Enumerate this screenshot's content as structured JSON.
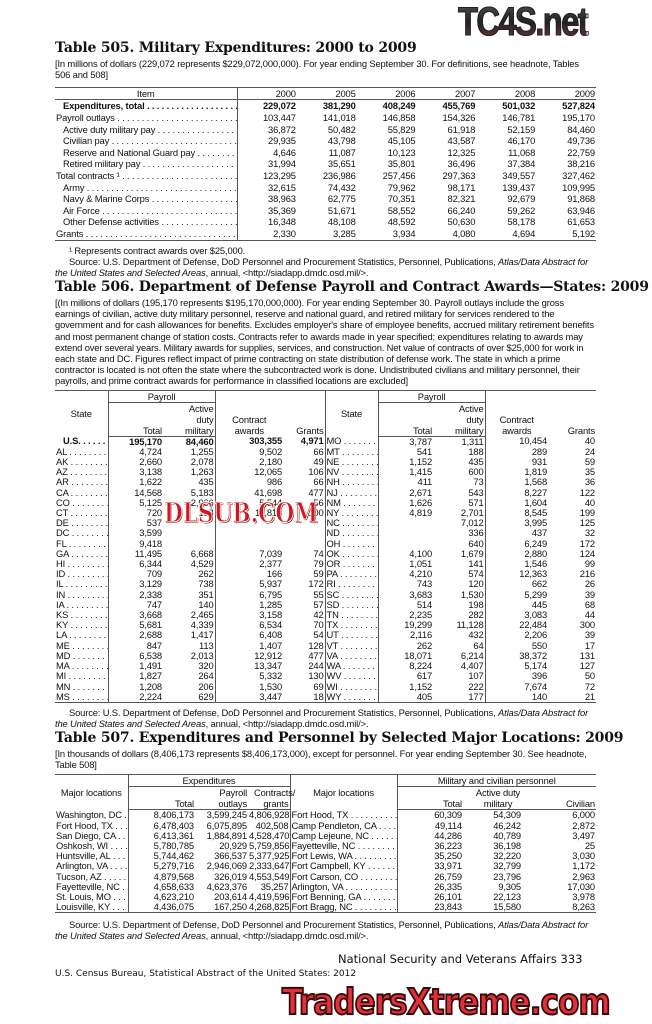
{
  "watermarks": {
    "top": "TC4S.net",
    "middle": "DLSUB.COM",
    "bottom": "TradersXtreme.com"
  },
  "t505": {
    "title": "Table 505. Military Expenditures: 2000 to 2009",
    "headnote": "[In millions of dollars (229,072 represents $229,072,000,000). For year ending September 30. For definitions, see headnote, Tables 506 and 508]",
    "columns": [
      "Item",
      "2000",
      "2005",
      "2006",
      "2007",
      "2008",
      "2009"
    ],
    "rows": [
      {
        "label": "Expenditures, total",
        "bold": true,
        "indent": true,
        "values": [
          "229,072",
          "381,290",
          "408,249",
          "455,769",
          "501,032",
          "527,824"
        ]
      },
      {
        "label": "Payroll outlays",
        "values": [
          "103,447",
          "141,018",
          "146,858",
          "154,326",
          "146,781",
          "195,170"
        ]
      },
      {
        "label": "Active duty military pay",
        "indent": true,
        "values": [
          "36,872",
          "50,482",
          "55,829",
          "61,918",
          "52,159",
          "84,460"
        ]
      },
      {
        "label": "Civilian pay",
        "indent": true,
        "values": [
          "29,935",
          "43,798",
          "45,105",
          "43,587",
          "46,170",
          "49,736"
        ]
      },
      {
        "label": "Reserve and National Guard pay",
        "indent": true,
        "values": [
          "4,646",
          "11,087",
          "10,123",
          "12,325",
          "11,068",
          "22,759"
        ]
      },
      {
        "label": "Retired military pay",
        "indent": true,
        "values": [
          "31,994",
          "35,651",
          "35,801",
          "36,496",
          "37,384",
          "38,216"
        ]
      },
      {
        "label": "Total contracts ¹",
        "values": [
          "123,295",
          "236,986",
          "257,456",
          "297,363",
          "349,557",
          "327,462"
        ]
      },
      {
        "label": "Army",
        "indent": true,
        "values": [
          "32,615",
          "74,432",
          "79,962",
          "98,171",
          "139,437",
          "109,995"
        ]
      },
      {
        "label": "Navy & Marine Corps",
        "indent": true,
        "values": [
          "38,963",
          "62,775",
          "70,351",
          "82,321",
          "92,679",
          "91,868"
        ]
      },
      {
        "label": "Air Force",
        "indent": true,
        "values": [
          "35,369",
          "51,671",
          "58,552",
          "66,240",
          "59,262",
          "63,946"
        ]
      },
      {
        "label": "Other Defense activities",
        "indent": true,
        "values": [
          "16,348",
          "48,108",
          "48,592",
          "50,630",
          "58,178",
          "61,653"
        ]
      },
      {
        "label": "Grants",
        "values": [
          "2,330",
          "3,285",
          "3,934",
          "4,080",
          "4,694",
          "5,192"
        ]
      }
    ],
    "footnote": "¹ Represents contract awards over $25,000.",
    "source": "Source: U.S. Department of Defense, DoD Personnel and Procurement Statistics, Personnel, Publications, ",
    "source_italic": "Atlas/Data Abstract for the United States and Selected Areas",
    "source_end": ", annual, <http://siadapp.dmdc.osd.mil/>."
  },
  "t506": {
    "title": "Table 506. Department of Defense Payroll and Contract Awards—States: 2009",
    "headnote": "[(In millions of dollars (195,170 represents $195,170,000,000). For year ending September 30. Payroll outlays include the gross earnings of civilian, active duty military personnel, reserve and national guard, and retired military for services rendered to the government and for cash allowances for benefits. Excludes employer's share of employee benefits, accrued military retirement benefits and most permanent change of station costs. Contracts refer to awards made in year specified; expenditures relating to awards may extend over several years. Military awards for supplies, services, and construction. Net value of contracts of over $25,000 for work in each state and DC. Figures reflect impact of prime contracting on state distribution of defense work. The state in which a prime contractor is located is not often the state where the subcontracted work is done. Undistributed civilians and military personnel, their payrolls, and prime contract awards for performance in classified locations are excluded]",
    "headers": {
      "state": "State",
      "payroll": "Payroll",
      "total": "Total",
      "active": "Active duty military",
      "contract": "Contract awards",
      "grants": "Grants"
    },
    "left": [
      [
        "U.S.",
        "195,170",
        "84,460",
        "303,355",
        "4,971"
      ],
      [
        "AL",
        "4,724",
        "1,255",
        "9,502",
        "66"
      ],
      [
        "AK",
        "2,660",
        "2,078",
        "2,180",
        "49"
      ],
      [
        "AZ",
        "3,138",
        "1,263",
        "12,065",
        "106"
      ],
      [
        "AR",
        "1,622",
        "435",
        "986",
        "66"
      ],
      [
        "CA",
        "14,568",
        "5,183",
        "41,698",
        "477"
      ],
      [
        "CO",
        "5,125",
        "2,966",
        "5,544",
        "56"
      ],
      [
        "CT",
        "720",
        "198",
        "11,818",
        "100"
      ],
      [
        "DE",
        "537",
        "",
        "",
        ""
      ],
      [
        "DC",
        "3,599",
        "",
        "",
        ""
      ],
      [
        "FL",
        "9,418",
        "",
        "",
        ""
      ],
      [
        "GA",
        "11,495",
        "6,668",
        "7,039",
        "74"
      ],
      [
        "HI",
        "6,344",
        "4,529",
        "2,377",
        "79"
      ],
      [
        "ID",
        "709",
        "262",
        "166",
        "59"
      ],
      [
        "IL",
        "3,129",
        "738",
        "5,937",
        "172"
      ],
      [
        "IN",
        "2,338",
        "351",
        "6,795",
        "55"
      ],
      [
        "IA",
        "747",
        "140",
        "1,285",
        "57"
      ],
      [
        "KS",
        "3,668",
        "2,465",
        "3,158",
        "42"
      ],
      [
        "KY",
        "5,681",
        "4,339",
        "6,534",
        "70"
      ],
      [
        "LA",
        "2,688",
        "1,417",
        "6,408",
        "54"
      ],
      [
        "ME",
        "847",
        "113",
        "1,407",
        "128"
      ],
      [
        "MD",
        "6,538",
        "2,013",
        "12,912",
        "477"
      ],
      [
        "MA",
        "1,491",
        "320",
        "13,347",
        "244"
      ],
      [
        "MI",
        "1,827",
        "264",
        "5,332",
        "130"
      ],
      [
        "MN",
        "1,208",
        "206",
        "1,530",
        "69"
      ],
      [
        "MS",
        "2,224",
        "629",
        "3,447",
        "18"
      ]
    ],
    "right": [
      [
        "MO",
        "3,787",
        "1,311",
        "10,454",
        "40"
      ],
      [
        "MT",
        "541",
        "188",
        "289",
        "24"
      ],
      [
        "NE",
        "1,152",
        "435",
        "931",
        "59"
      ],
      [
        "NV",
        "1,415",
        "600",
        "1,819",
        "35"
      ],
      [
        "NH",
        "411",
        "73",
        "1,568",
        "36"
      ],
      [
        "NJ",
        "2,671",
        "543",
        "8,227",
        "122"
      ],
      [
        "NM",
        "1,626",
        "571",
        "1,604",
        "40"
      ],
      [
        "NY",
        "4,819",
        "2,701",
        "8,545",
        "199"
      ],
      [
        "NC",
        "",
        "7,012",
        "3,995",
        "125"
      ],
      [
        "ND",
        "",
        "336",
        "437",
        "32"
      ],
      [
        "OH",
        "",
        "640",
        "6,249",
        "172"
      ],
      [
        "OK",
        "4,100",
        "1,679",
        "2,880",
        "124"
      ],
      [
        "OR",
        "1,051",
        "141",
        "1,546",
        "99"
      ],
      [
        "PA",
        "4,210",
        "574",
        "12,363",
        "216"
      ],
      [
        "RI",
        "743",
        "120",
        "662",
        "26"
      ],
      [
        "SC",
        "3,683",
        "1,530",
        "5,299",
        "39"
      ],
      [
        "SD",
        "514",
        "198",
        "445",
        "68"
      ],
      [
        "TN",
        "2,235",
        "282",
        "3,083",
        "44"
      ],
      [
        "TX",
        "19,299",
        "11,128",
        "22,484",
        "300"
      ],
      [
        "UT",
        "2,116",
        "432",
        "2,206",
        "39"
      ],
      [
        "VT",
        "262",
        "64",
        "550",
        "17"
      ],
      [
        "VA",
        "18,071",
        "6,214",
        "38,372",
        "131"
      ],
      [
        "WA",
        "8,224",
        "4,407",
        "5,174",
        "127"
      ],
      [
        "WV",
        "617",
        "107",
        "396",
        "50"
      ],
      [
        "WI",
        "1,152",
        "222",
        "7,674",
        "72"
      ],
      [
        "WY",
        "405",
        "177",
        "140",
        "21"
      ]
    ],
    "source": "Source: U.S. Department of Defense, DoD Personnel and Procurement Statistics, Personnel, Publications, ",
    "source_italic": "Atlas/Data Abstract for the United States and Selected Areas",
    "source_end": ", annual, <http://siadapp.dmdc.osd.mil/>."
  },
  "t507": {
    "title": "Table 507. Expenditures and Personnel by Selected Major Locations: 2009",
    "headnote": "[In thousands of dollars (8,406,173 represents $8,406,173,000), except for personnel. For year ending September 30. See headnote, Table 508]",
    "headers": {
      "loc": "Major locations",
      "exp": "Expenditures",
      "total": "Total",
      "payroll": "Payroll outlays",
      "contracts": "Contracts/ grants",
      "pers": "Military and civilian personnel",
      "active": "Active duty military",
      "civilian": "Civilian"
    },
    "rows": [
      [
        "Washington, DC",
        "8,406,173",
        "3,599,245",
        "4,806,928",
        "Fort Hood, TX",
        "60,309",
        "54,309",
        "6,000"
      ],
      [
        "Fort Hood, TX",
        "6,478,403",
        "6,075,895",
        "402,508",
        "Camp Pendleton, CA",
        "49,114",
        "46,242",
        "2,872"
      ],
      [
        "San Diego, CA",
        "6,413,361",
        "1,884,891",
        "4,528,470",
        "Camp Lejeune, NC",
        "44,286",
        "40,789",
        "3,497"
      ],
      [
        "Oshkosh, WI",
        "5,780,785",
        "20,929",
        "5,759,856",
        "Fayetteville, NC",
        "36,223",
        "36,198",
        "25"
      ],
      [
        "Huntsville, AL",
        "5,744,462",
        "366,537",
        "5,377,925",
        "Fort Lewis, WA",
        "35,250",
        "32,220",
        "3,030"
      ],
      [
        "Arlington, VA",
        "5,279,716",
        "2,946,069",
        "2,333,647",
        "Fort Campbell, KY",
        "33,971",
        "32,799",
        "1,172"
      ],
      [
        "Tucson, AZ",
        "4,879,568",
        "326,019",
        "4,553,549",
        "Fort Carson, CO",
        "26,759",
        "23,796",
        "2,963"
      ],
      [
        "Fayetteville, NC",
        "4,658,633",
        "4,623,376",
        "35,257",
        "Arlington, VA",
        "26,335",
        "9,305",
        "17,030"
      ],
      [
        "St. Louis, MO",
        "4,623,210",
        "203,614",
        "4,419,596",
        "Fort Benning, GA",
        "26,101",
        "22,123",
        "3,978"
      ],
      [
        "Louisville, KY",
        "4,436,075",
        "167,250",
        "4,268,825",
        "Fort Bragg, NC",
        "23,843",
        "15,580",
        "8,263"
      ]
    ],
    "source": "Source: U.S. Department of Defense, DoD Personnel and Procurement Statistics, Personnel, Publications, ",
    "source_italic": "Atlas/Data Abstract for the United States and Selected Areas",
    "source_end": ", annual, <http://siadapp.dmdc.osd.mil/>."
  },
  "footer": {
    "section": "National Security and Veterans Affairs  333",
    "publisher": "U.S. Census Bureau, Statistical Abstract of the United States: 2012"
  }
}
